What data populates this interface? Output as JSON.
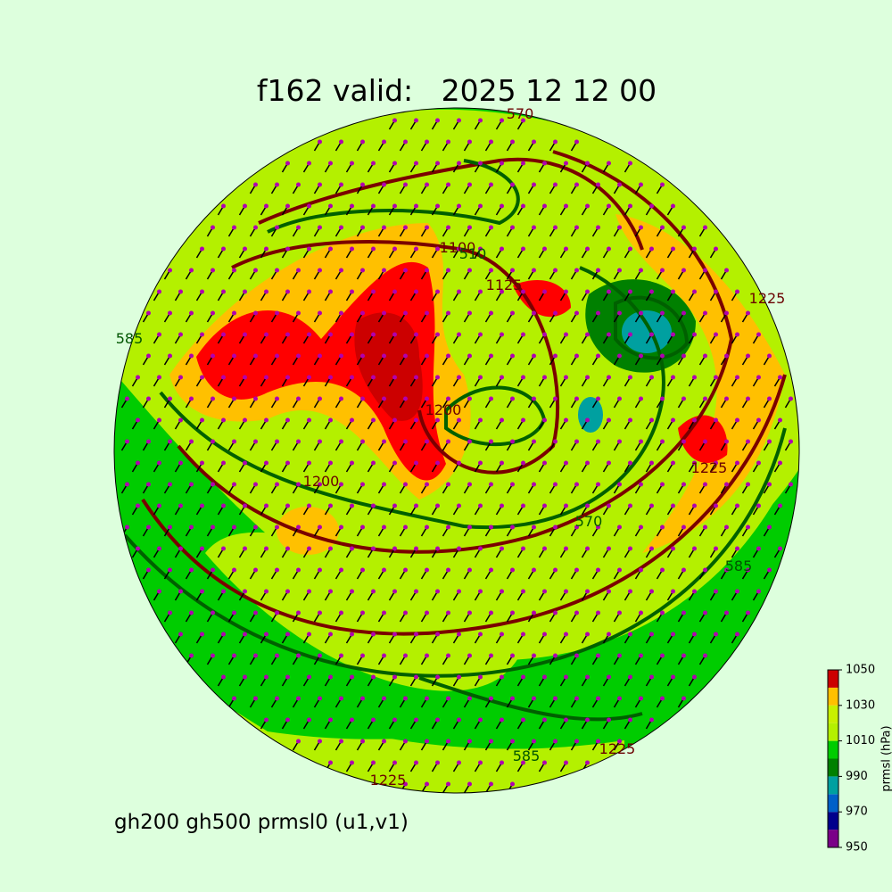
{
  "header": {
    "title": "f162 valid:   2025 12 12 00"
  },
  "caption": "gh200 gh500 prmsl0 (u1,v1)",
  "contour_labels": [
    "570",
    "1100",
    "510",
    "1125",
    "585",
    "1200",
    "1200",
    "1225",
    "570",
    "585",
    "1225",
    "585",
    "1225",
    "1225"
  ],
  "colorbar": {
    "label": "prmsl (hPa)",
    "ticks": [
      950,
      970,
      990,
      1010,
      1030,
      1050
    ],
    "levels": [
      950,
      960,
      970,
      980,
      990,
      1000,
      1010,
      1020,
      1030,
      1040,
      1050
    ],
    "colors": [
      "#7a0088",
      "#00008c",
      "#0060c8",
      "#00a0a0",
      "#008000",
      "#00cc00",
      "#b4f000",
      "#c8f000",
      "#ffc000",
      "#cc0000"
    ]
  }
}
